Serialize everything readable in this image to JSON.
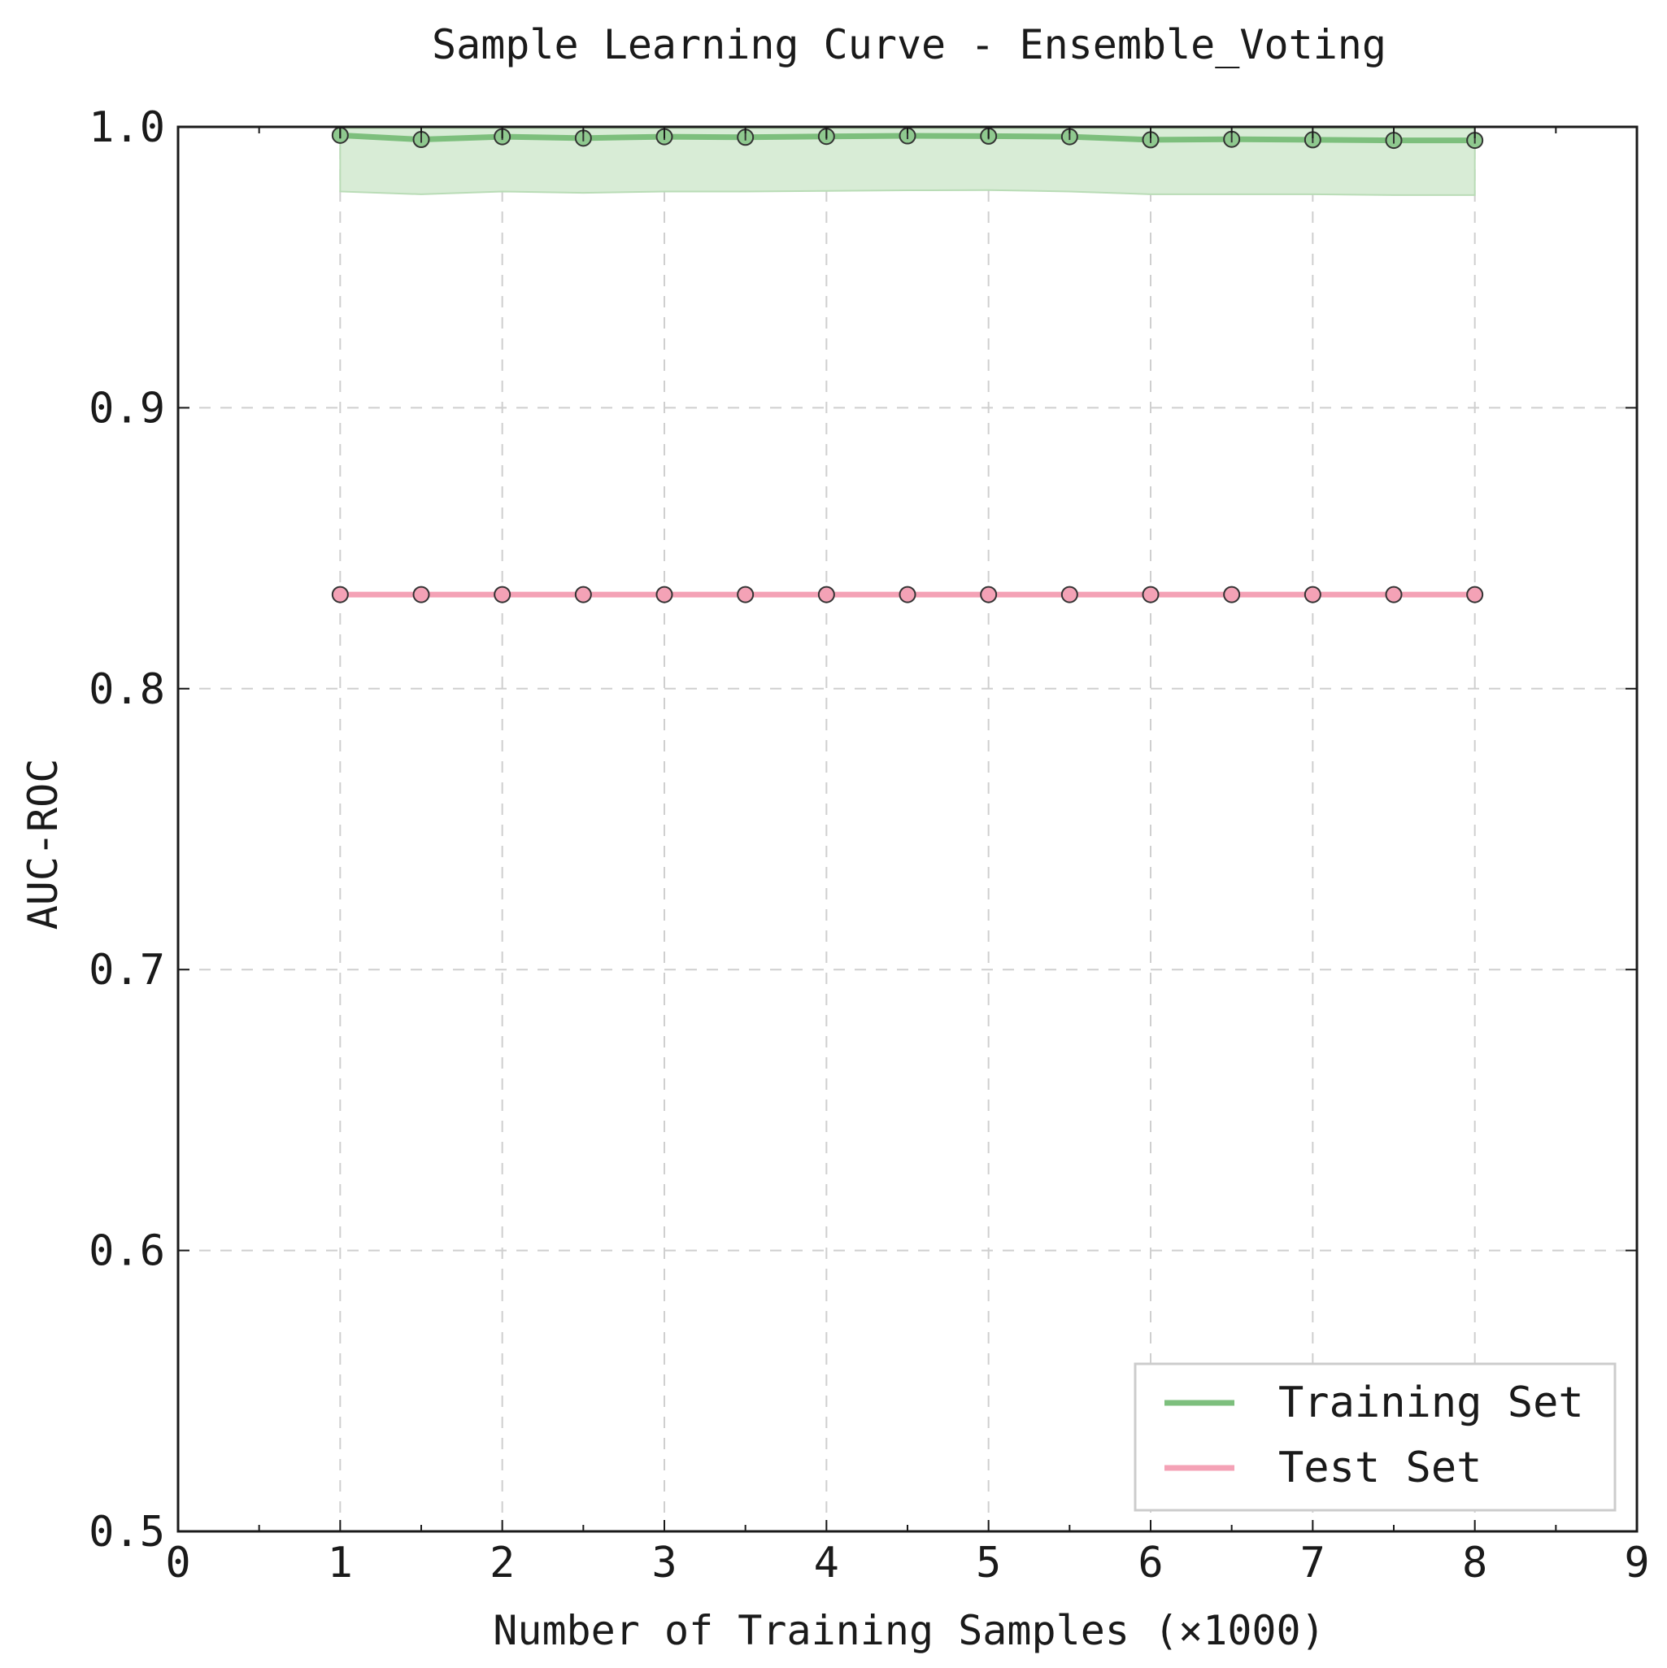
{
  "chart_data": {
    "type": "line",
    "title": "Sample Learning Curve - Ensemble_Voting",
    "xlabel": "Number of Training Samples (×1000)",
    "ylabel": "AUC-ROC",
    "xlim": [
      0,
      9
    ],
    "ylim": [
      0.5,
      1.0
    ],
    "xticks": [
      "0",
      "1",
      "2",
      "3",
      "4",
      "5",
      "6",
      "7",
      "8",
      "9"
    ],
    "yticks": [
      "0.5",
      "0.6",
      "0.7",
      "0.8",
      "0.9",
      "1.0"
    ],
    "grid": true,
    "legend_position": "lower-right",
    "x": [
      1.0,
      1.5,
      2.0,
      2.5,
      3.0,
      3.5,
      4.0,
      4.5,
      5.0,
      5.5,
      6.0,
      6.5,
      7.0,
      7.5,
      8.0
    ],
    "series": [
      {
        "name": "Training Set",
        "color": "#7dbf7d",
        "values": [
          0.997,
          0.9955,
          0.9965,
          0.996,
          0.9965,
          0.9963,
          0.9966,
          0.9968,
          0.9967,
          0.9965,
          0.9954,
          0.9956,
          0.9954,
          0.9952,
          0.9952
        ],
        "band_lower": [
          0.977,
          0.976,
          0.977,
          0.9765,
          0.977,
          0.977,
          0.9772,
          0.9774,
          0.9775,
          0.977,
          0.976,
          0.976,
          0.976,
          0.9757,
          0.9757
        ],
        "band_upper": [
          0.9995,
          0.9995,
          0.9995,
          0.9995,
          0.9995,
          0.9995,
          0.9995,
          0.9995,
          0.9995,
          0.9995,
          0.9995,
          0.9995,
          0.9995,
          0.9995,
          0.9995
        ],
        "band_color": "#d8ecd6",
        "marker_fill": "#8fc98f"
      },
      {
        "name": "Test Set",
        "color": "#f4a2b6",
        "values": [
          0.8335,
          0.8335,
          0.8335,
          0.8335,
          0.8335,
          0.8335,
          0.8335,
          0.8335,
          0.8335,
          0.8335,
          0.8335,
          0.8335,
          0.8335,
          0.8335,
          0.8335
        ],
        "marker_fill": "#f4a2b6"
      }
    ]
  }
}
